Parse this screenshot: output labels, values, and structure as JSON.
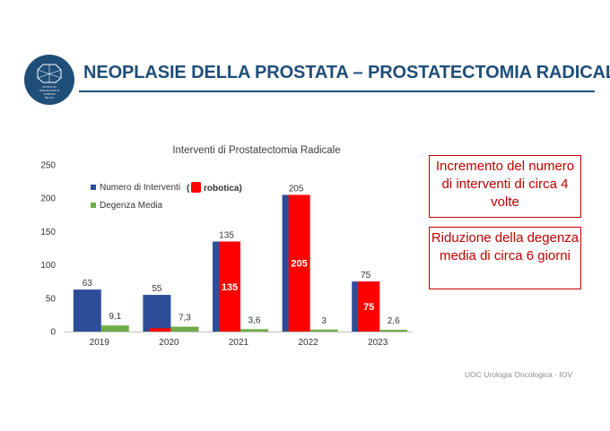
{
  "header": {
    "title": "NEOPLASIE DELLA PROSTATA – PROSTATECTOMIA RADICALE",
    "logo_text": [
      "ISTITUTO",
      "ONCOLOGICO",
      "VENETO",
      "IRCCS"
    ]
  },
  "chart_data": {
    "type": "bar",
    "title": "Interventi di Prostatectomia Radicale",
    "categories": [
      "2019",
      "2020",
      "2021",
      "2022",
      "2023"
    ],
    "ylim": [
      0,
      250
    ],
    "yticks": [
      "0",
      "50",
      "100",
      "150",
      "200",
      "250"
    ],
    "series": [
      {
        "name": "Numero di Interventi",
        "color": "#2e4d99",
        "values": [
          63,
          55,
          135,
          205,
          75
        ]
      },
      {
        "name": "robotica",
        "color": "#ff0000",
        "values": [
          null,
          5,
          135,
          205,
          75
        ]
      },
      {
        "name": "Degenza Media",
        "color": "#70ad47",
        "values": [
          9.1,
          7.3,
          3.6,
          3,
          2.6
        ]
      }
    ],
    "labels": {
      "interventi": [
        "63",
        "55",
        "135",
        "205",
        "75"
      ],
      "robotica": [
        "",
        "",
        "135",
        "205",
        "75"
      ],
      "degenza": [
        "9,1",
        "7,3",
        "3,6",
        "3",
        "2,6"
      ]
    },
    "legend": {
      "placement": "top-left",
      "interventi": "Numero di Interventi",
      "degenza": "Degenza Media",
      "robotica_open": "(",
      "robotica_label": "robotica)"
    },
    "grid": false
  },
  "notes": {
    "box1": "Incremento del numero di interventi di circa 4 volte",
    "box2": "Riduzione della degenza media di circa 6 giorni"
  },
  "footer": "UOC Urologia Oncologica  - IOV",
  "colors": {
    "brand": "#1f4e79",
    "accent": "#c00000"
  }
}
